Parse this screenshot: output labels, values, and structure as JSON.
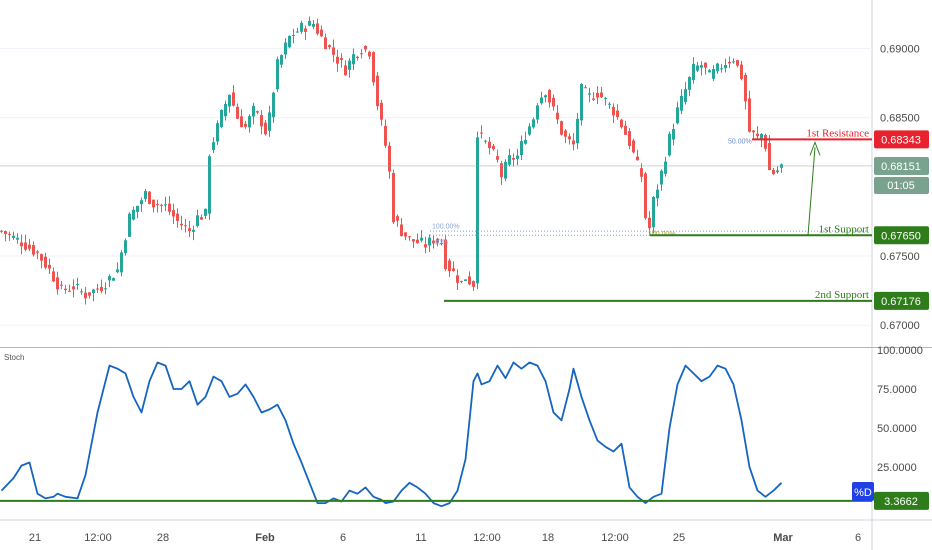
{
  "colors": {
    "up": "#26a69a",
    "down": "#ef5350",
    "resistance": "#e8212e",
    "support": "#2e7d1a",
    "stoch": "#1565c0",
    "grid": "#e0e3eb",
    "current": "#7aa38f"
  },
  "chart_data": [
    {
      "type": "candlestick",
      "title": "",
      "x_ticks": [
        "21",
        "12:00",
        "28",
        "Feb",
        "6",
        "11",
        "12:00",
        "18",
        "12:00",
        "25",
        "Mar",
        "6"
      ],
      "y_ticks": [
        "0.69000",
        "0.68500",
        "0.67500",
        "0.67000"
      ],
      "ylim": [
        0.6685,
        0.6935
      ],
      "price_path": [
        [
          0,
          0.6768
        ],
        [
          5,
          0.676
        ],
        [
          9,
          0.6752
        ],
        [
          12,
          0.674
        ],
        [
          15,
          0.6725
        ],
        [
          18,
          0.6728
        ],
        [
          21,
          0.6722
        ],
        [
          25,
          0.6728
        ],
        [
          29,
          0.674
        ],
        [
          32,
          0.6778
        ],
        [
          36,
          0.6795
        ],
        [
          38,
          0.6788
        ],
        [
          41,
          0.6786
        ],
        [
          44,
          0.6775
        ],
        [
          47,
          0.6768
        ],
        [
          49,
          0.6778
        ],
        [
          51,
          0.678
        ],
        [
          52,
          0.6825
        ],
        [
          55,
          0.6852
        ],
        [
          57,
          0.6868
        ],
        [
          59,
          0.685
        ],
        [
          61,
          0.6843
        ],
        [
          63,
          0.6855
        ],
        [
          65,
          0.6847
        ],
        [
          66,
          0.684
        ],
        [
          67,
          0.685
        ],
        [
          68,
          0.687
        ],
        [
          69,
          0.6888
        ],
        [
          72,
          0.6908
        ],
        [
          75,
          0.6915
        ],
        [
          78,
          0.6918
        ],
        [
          80,
          0.6908
        ],
        [
          82,
          0.69
        ],
        [
          84,
          0.6892
        ],
        [
          86,
          0.6885
        ],
        [
          88,
          0.6895
        ],
        [
          90,
          0.69
        ],
        [
          92,
          0.6898
        ],
        [
          94,
          0.686
        ],
        [
          96,
          0.683
        ],
        [
          97,
          0.681
        ],
        [
          98,
          0.6778
        ],
        [
          100,
          0.6768
        ],
        [
          102,
          0.6762
        ],
        [
          104,
          0.676
        ],
        [
          106,
          0.6758
        ],
        [
          108,
          0.6762
        ],
        [
          110,
          0.676
        ],
        [
          111,
          0.6745
        ],
        [
          113,
          0.6738
        ],
        [
          115,
          0.673
        ],
        [
          116,
          0.6735
        ],
        [
          117,
          0.6732
        ],
        [
          118,
          0.673
        ],
        [
          119,
          0.684
        ],
        [
          120,
          0.6835
        ],
        [
          122,
          0.6828
        ],
        [
          124,
          0.6818
        ],
        [
          125,
          0.6808
        ],
        [
          127,
          0.682
        ],
        [
          129,
          0.6822
        ],
        [
          131,
          0.6838
        ],
        [
          133,
          0.685
        ],
        [
          134,
          0.6862
        ],
        [
          136,
          0.687
        ],
        [
          138,
          0.6855
        ],
        [
          140,
          0.684
        ],
        [
          141,
          0.6835
        ],
        [
          143,
          0.683
        ],
        [
          145,
          0.687
        ],
        [
          147,
          0.6865
        ],
        [
          149,
          0.6868
        ],
        [
          151,
          0.6862
        ],
        [
          153,
          0.6855
        ],
        [
          155,
          0.6845
        ],
        [
          157,
          0.6832
        ],
        [
          159,
          0.6815
        ],
        [
          160,
          0.6808
        ],
        [
          161,
          0.6778
        ],
        [
          162,
          0.677
        ],
        [
          163,
          0.679
        ],
        [
          165,
          0.681
        ],
        [
          167,
          0.6835
        ],
        [
          169,
          0.6855
        ],
        [
          171,
          0.687
        ],
        [
          173,
          0.6885
        ],
        [
          175,
          0.6888
        ],
        [
          177,
          0.688
        ],
        [
          179,
          0.6885
        ],
        [
          181,
          0.689
        ],
        [
          183,
          0.6893
        ],
        [
          185,
          0.688
        ],
        [
          186,
          0.6862
        ],
        [
          187,
          0.684
        ],
        [
          189,
          0.6835
        ],
        [
          190,
          0.6838
        ],
        [
          191,
          0.683
        ],
        [
          192,
          0.6812
        ],
        [
          193,
          0.681
        ],
        [
          194,
          0.6812
        ],
        [
          195,
          0.6815
        ]
      ],
      "levels": [
        {
          "label": "1st Resistance",
          "value": 0.68343,
          "tag": "0.68343",
          "role": "resistance"
        },
        {
          "label": "1st Support",
          "value": 0.6765,
          "tag": "0.67650",
          "role": "support"
        },
        {
          "label": "2nd Support",
          "value": 0.67176,
          "tag": "0.67176",
          "role": "support"
        }
      ],
      "current_price": {
        "value": 0.68151,
        "tag": "0.68151",
        "countdown": "01:05"
      },
      "fib_labels": {
        "a": "50.00%",
        "b": "100.00%",
        "c": "100.00%",
        "d": "40%"
      }
    },
    {
      "type": "line",
      "title": "Stoch",
      "y_ticks": [
        "100.0000",
        "75.0000",
        "50.0000",
        "25.0000"
      ],
      "ylim": [
        -5,
        100
      ],
      "series": [
        {
          "name": "%D",
          "x": [
            0,
            3,
            5,
            7,
            9,
            11,
            13,
            14,
            16,
            19,
            21,
            24,
            27,
            29,
            31,
            33,
            35,
            37,
            39,
            41,
            43,
            45,
            47,
            49,
            51,
            53,
            55,
            57,
            59,
            61,
            63,
            65,
            67,
            69,
            71,
            73,
            75,
            77,
            79,
            81,
            83,
            85,
            87,
            89,
            91,
            93,
            95,
            96,
            98,
            100,
            102,
            104,
            106,
            108,
            110,
            112,
            114,
            116,
            117,
            118,
            119,
            120,
            122,
            124,
            126,
            128,
            130,
            132,
            134,
            136,
            138,
            140,
            142,
            143,
            145,
            147,
            149,
            151,
            153,
            155,
            157,
            159,
            160,
            161,
            163,
            165,
            167,
            169,
            171,
            173,
            175,
            177,
            179,
            181,
            183,
            185,
            187,
            189,
            191,
            193,
            195
          ],
          "values": [
            10,
            18,
            26,
            28,
            8,
            5,
            6,
            8,
            6,
            5,
            20,
            60,
            90,
            88,
            85,
            70,
            60,
            80,
            92,
            90,
            75,
            75,
            80,
            65,
            70,
            83,
            80,
            70,
            72,
            78,
            70,
            60,
            62,
            65,
            55,
            40,
            28,
            15,
            2,
            2,
            5,
            3,
            10,
            8,
            12,
            6,
            4,
            2,
            3,
            10,
            15,
            12,
            8,
            2,
            0,
            2,
            10,
            30,
            55,
            80,
            85,
            78,
            80,
            90,
            82,
            92,
            88,
            92,
            90,
            80,
            60,
            55,
            75,
            88,
            70,
            55,
            42,
            38,
            35,
            40,
            12,
            6,
            4,
            2,
            6,
            8,
            50,
            78,
            90,
            85,
            80,
            83,
            90,
            88,
            78,
            55,
            25,
            10,
            6,
            10,
            15
          ]
        }
      ],
      "level": {
        "value": 3.3662,
        "tag": "3.3662"
      },
      "legend_tag": "%D"
    }
  ]
}
